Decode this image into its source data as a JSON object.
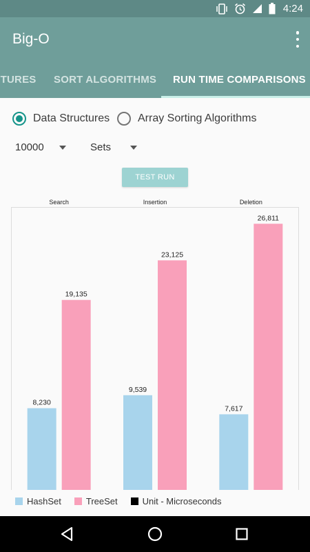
{
  "status_bar": {
    "time": "4:24",
    "icons": [
      "vibrate-icon",
      "alarm-icon",
      "signal-icon",
      "battery-icon"
    ]
  },
  "app": {
    "title": "Big-O"
  },
  "tabs": [
    {
      "label": "STRUCTURES",
      "active": false
    },
    {
      "label": "SORT ALGORITHMS",
      "active": false
    },
    {
      "label": "RUN TIME COMPARISONS",
      "active": true
    }
  ],
  "mode_options": [
    {
      "label": "Data Structures",
      "checked": true
    },
    {
      "label": "Array Sorting Algorithms",
      "checked": false
    }
  ],
  "size_select": {
    "value": "10000"
  },
  "type_select": {
    "value": "Sets"
  },
  "test_button": {
    "label": "TEST RUN"
  },
  "colors": {
    "accent": "#15948a",
    "hashset": "#a8d4ec",
    "treeset": "#f9a0ba",
    "unit": "#000000",
    "toolbar": "#6f9e9a",
    "statusbar": "#5e8986"
  },
  "chart_data": {
    "type": "bar",
    "categories": [
      "Search",
      "Insertion",
      "Deletion"
    ],
    "series": [
      {
        "name": "HashSet",
        "values": [
          8230,
          9539,
          7617
        ],
        "labels": [
          "8,230",
          "9,539",
          "7,617"
        ]
      },
      {
        "name": "TreeSet",
        "values": [
          19135,
          23125,
          26811
        ],
        "labels": [
          "19,135",
          "23,125",
          "26,811"
        ]
      }
    ],
    "ylim": [
      0,
      28500
    ],
    "grid": false,
    "legend_position": "bottom-left"
  },
  "legend": [
    {
      "label": "HashSet",
      "color": "#a8d4ec"
    },
    {
      "label": "TreeSet",
      "color": "#f9a0ba"
    },
    {
      "label": "Unit - Microseconds",
      "color": "#000000"
    }
  ]
}
